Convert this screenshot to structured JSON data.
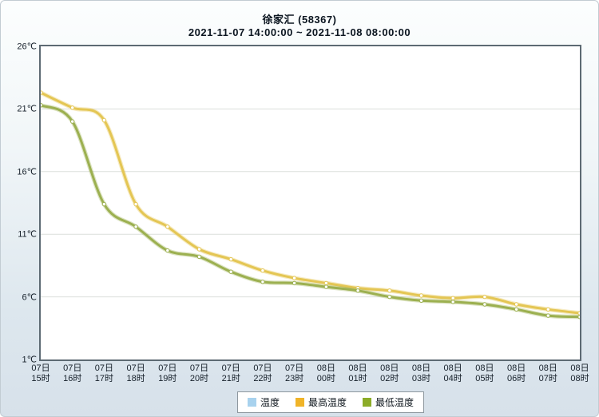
{
  "header": {
    "title": "徐家汇 (58367)",
    "subtitle": "2021-11-07 14:00:00 ~ 2021-11-08 08:00:00"
  },
  "colors": {
    "page_border": "#c2ccd3",
    "plot_border": "#5d6a73",
    "plot_background": "#ffffff",
    "grid_line": "#dcdfdb",
    "axis_text": "#16202a",
    "title_text": "#0b1520",
    "legend_border": "#8d979e",
    "temp_swatch": "#a8d2ee",
    "max_temp_swatch": "#f0b428",
    "min_temp_swatch": "#8cac28",
    "max_temp_line": "#e4c654",
    "min_temp_line": "#9cb050",
    "marker_fill": "#ffffff"
  },
  "chart_data": {
    "type": "line",
    "title": "徐家汇 (58367)",
    "subtitle": "2021-11-07 14:00:00 ~ 2021-11-08 08:00:00",
    "xlabel": "",
    "ylabel": "",
    "ylim": [
      1,
      26
    ],
    "grid": "horizontal-only",
    "legend_position": "bottom",
    "y_ticks": [
      {
        "value": 26,
        "label": "26℃"
      },
      {
        "value": 21,
        "label": "21℃"
      },
      {
        "value": 16,
        "label": "16℃"
      },
      {
        "value": 11,
        "label": "11℃"
      },
      {
        "value": 6,
        "label": "6℃"
      },
      {
        "value": 1,
        "label": "1℃"
      }
    ],
    "x_labels": [
      {
        "day": "07日",
        "hour": "15时"
      },
      {
        "day": "07日",
        "hour": "16时"
      },
      {
        "day": "07日",
        "hour": "17时"
      },
      {
        "day": "07日",
        "hour": "18时"
      },
      {
        "day": "07日",
        "hour": "19时"
      },
      {
        "day": "07日",
        "hour": "20时"
      },
      {
        "day": "07日",
        "hour": "21时"
      },
      {
        "day": "07日",
        "hour": "22时"
      },
      {
        "day": "07日",
        "hour": "23时"
      },
      {
        "day": "08日",
        "hour": "00时"
      },
      {
        "day": "08日",
        "hour": "01时"
      },
      {
        "day": "08日",
        "hour": "02时"
      },
      {
        "day": "08日",
        "hour": "03时"
      },
      {
        "day": "08日",
        "hour": "04时"
      },
      {
        "day": "08日",
        "hour": "05时"
      },
      {
        "day": "08日",
        "hour": "06时"
      },
      {
        "day": "08日",
        "hour": "07时"
      },
      {
        "day": "08日",
        "hour": "08时"
      }
    ],
    "series": [
      {
        "name": "温度",
        "swatch_color": "#a8d2ee",
        "line_color": "#a8d2ee",
        "values": []
      },
      {
        "name": "最高温度",
        "swatch_color": "#f0b428",
        "line_color": "#e4c654",
        "values": [
          22.3,
          21.1,
          20.1,
          13.4,
          11.6,
          9.8,
          9.0,
          8.1,
          7.5,
          7.1,
          6.7,
          6.5,
          6.1,
          5.9,
          6.0,
          5.4,
          5.0,
          4.7
        ]
      },
      {
        "name": "最低温度",
        "swatch_color": "#8cac28",
        "line_color": "#9cb050",
        "values": [
          21.3,
          20.0,
          13.4,
          11.6,
          9.7,
          9.2,
          8.0,
          7.2,
          7.1,
          6.8,
          6.5,
          6.0,
          5.7,
          5.6,
          5.4,
          5.0,
          4.5,
          4.4
        ]
      }
    ]
  }
}
